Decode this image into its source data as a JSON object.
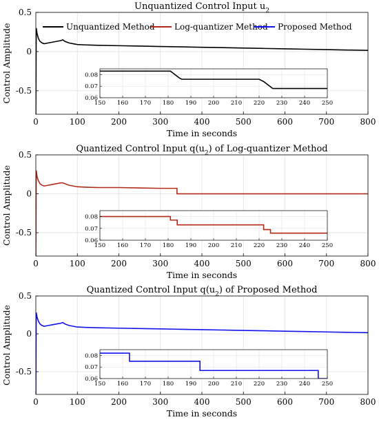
{
  "chart_data": [
    {
      "type": "line",
      "title": "Unquantized Control Input u",
      "title_sub": "2",
      "xlabel": "Time in seconds",
      "ylabel": "Control Amplitude",
      "xlim": [
        0,
        800
      ],
      "ylim": [
        -0.8,
        0.5
      ],
      "xticks": [
        0,
        100,
        200,
        300,
        400,
        500,
        600,
        700,
        800
      ],
      "yticks": [
        0.5,
        0,
        -0.5
      ],
      "ytick_labels": [
        "0.5",
        "0",
        "-0.5"
      ],
      "grid": true,
      "legend": {
        "placement": "top",
        "entries": [
          {
            "label": "Unquantized Method",
            "color": "#000000"
          },
          {
            "label": "Log-quantizer Method",
            "color": "#b22a1a"
          },
          {
            "label": "Proposed Method",
            "color": "#1010ee"
          }
        ]
      },
      "series": [
        {
          "color": "#000000",
          "x": [
            0,
            1,
            3,
            6,
            10,
            15,
            20,
            30,
            40,
            50,
            60,
            65,
            70,
            75,
            80,
            90,
            100,
            120,
            150,
            200,
            250,
            300,
            350,
            400,
            450,
            500,
            550,
            600,
            650,
            700,
            750,
            800
          ],
          "y": [
            -0.8,
            0.3,
            0.23,
            0.17,
            0.13,
            0.11,
            0.1,
            0.11,
            0.12,
            0.13,
            0.14,
            0.15,
            0.13,
            0.12,
            0.11,
            0.1,
            0.09,
            0.085,
            0.08,
            0.075,
            0.07,
            0.065,
            0.06,
            0.055,
            0.05,
            0.045,
            0.04,
            0.035,
            0.03,
            0.025,
            0.02,
            0.015
          ]
        }
      ],
      "inset": {
        "xlim": [
          150,
          250
        ],
        "ylim": [
          0.06,
          0.085
        ],
        "xticks": [
          150,
          160,
          170,
          180,
          190,
          200,
          210,
          220,
          230,
          240,
          250
        ],
        "yticks": [
          0.08,
          0.07,
          0.06
        ],
        "ytick_labels": [
          "0.08",
          "0.07",
          "0.06"
        ],
        "series": [
          {
            "color": "#000000",
            "x": [
              150,
              181,
              183,
              185,
              186,
              220,
              222,
              224,
              226,
              250
            ],
            "y": [
              0.083,
              0.083,
              0.08,
              0.077,
              0.076,
              0.076,
              0.074,
              0.071,
              0.068,
              0.068
            ]
          }
        ]
      }
    },
    {
      "type": "line",
      "title": "Quantized Control Input q(u",
      "title_sub": "2",
      "title_end": ") of Log-quantizer Method",
      "xlabel": "Time in seconds",
      "ylabel": "Control Amplitude",
      "xlim": [
        0,
        800
      ],
      "ylim": [
        -0.8,
        0.5
      ],
      "xticks": [
        0,
        100,
        200,
        300,
        400,
        500,
        600,
        700,
        800
      ],
      "yticks": [
        0.5,
        0,
        -0.5
      ],
      "ytick_labels": [
        "0.5",
        "0",
        "-0.5"
      ],
      "grid": true,
      "series": [
        {
          "color": "#b22a1a",
          "x": [
            0,
            1,
            3,
            6,
            10,
            15,
            20,
            30,
            40,
            50,
            60,
            65,
            70,
            75,
            80,
            90,
            100,
            120,
            150,
            200,
            250,
            300,
            340,
            340,
            800
          ],
          "y": [
            -0.8,
            0.3,
            0.22,
            0.17,
            0.13,
            0.11,
            0.1,
            0.11,
            0.12,
            0.13,
            0.14,
            0.14,
            0.13,
            0.12,
            0.11,
            0.1,
            0.09,
            0.085,
            0.08,
            0.08,
            0.075,
            0.07,
            0.07,
            0.0,
            0.0
          ]
        }
      ],
      "inset": {
        "xlim": [
          150,
          250
        ],
        "ylim": [
          0.06,
          0.085
        ],
        "xticks": [
          150,
          160,
          170,
          180,
          190,
          200,
          210,
          220,
          230,
          240,
          250
        ],
        "yticks": [
          0.08,
          0.07,
          0.06
        ],
        "ytick_labels": [
          "0.08",
          "0.07",
          "0.06"
        ],
        "series": [
          {
            "color": "#b22a1a",
            "x": [
              150,
              181,
              181,
              184,
              184,
              222,
              222,
              225,
              225,
              250
            ],
            "y": [
              0.08,
              0.08,
              0.077,
              0.077,
              0.073,
              0.073,
              0.069,
              0.069,
              0.066,
              0.066
            ]
          }
        ]
      }
    },
    {
      "type": "line",
      "title": "Quantized Control Input q(u",
      "title_sub": "2",
      "title_end": ") of Proposed Method",
      "xlabel": "Time in seconds",
      "ylabel": "Control Amplitude",
      "xlim": [
        0,
        800
      ],
      "ylim": [
        -0.8,
        0.5
      ],
      "xticks": [
        0,
        100,
        200,
        300,
        400,
        500,
        600,
        700,
        800
      ],
      "yticks": [
        0.5,
        0,
        -0.5
      ],
      "ytick_labels": [
        "0.5",
        "0",
        "-0.5"
      ],
      "grid": true,
      "series": [
        {
          "color": "#1010ee",
          "x": [
            0,
            1,
            3,
            6,
            10,
            15,
            20,
            30,
            40,
            50,
            60,
            65,
            70,
            75,
            80,
            90,
            100,
            120,
            150,
            200,
            250,
            300,
            350,
            400,
            450,
            500,
            550,
            600,
            650,
            700,
            750,
            800
          ],
          "y": [
            -0.8,
            0.28,
            0.22,
            0.17,
            0.13,
            0.11,
            0.1,
            0.11,
            0.12,
            0.13,
            0.14,
            0.15,
            0.13,
            0.12,
            0.11,
            0.1,
            0.09,
            0.085,
            0.08,
            0.075,
            0.07,
            0.065,
            0.06,
            0.055,
            0.05,
            0.045,
            0.04,
            0.035,
            0.03,
            0.025,
            0.02,
            0.015
          ]
        }
      ],
      "inset": {
        "xlim": [
          150,
          250
        ],
        "ylim": [
          0.06,
          0.085
        ],
        "xticks": [
          150,
          160,
          170,
          180,
          190,
          200,
          210,
          220,
          230,
          240,
          250
        ],
        "yticks": [
          0.08,
          0.07,
          0.06
        ],
        "ytick_labels": [
          "0.08",
          "0.07",
          "0.06"
        ],
        "series": [
          {
            "color": "#1010ee",
            "x": [
              150,
              163,
              163,
              194,
              194,
              246,
              246,
              250
            ],
            "y": [
              0.082,
              0.082,
              0.075,
              0.075,
              0.067,
              0.067,
              0.06,
              0.06
            ]
          }
        ]
      }
    }
  ]
}
